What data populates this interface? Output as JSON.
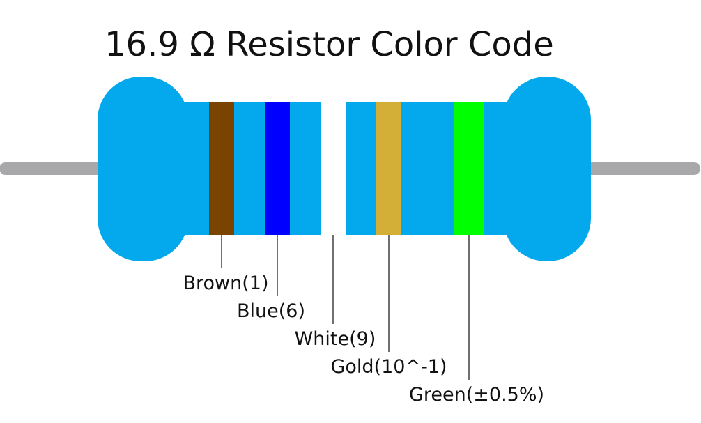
{
  "title": "16.9 Ω Resistor Color Code",
  "bands": [
    {
      "label": "Brown(1)"
    },
    {
      "label": "Blue(6)"
    },
    {
      "label": "White(9)"
    },
    {
      "label": "Gold(10^-1)"
    },
    {
      "label": "Green(±0.5%)"
    }
  ]
}
